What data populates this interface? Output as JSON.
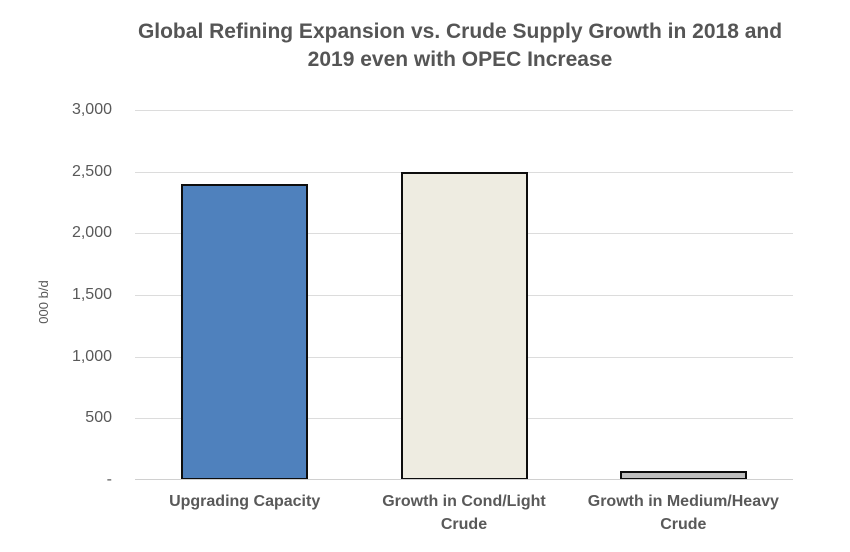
{
  "chart_data": {
    "type": "bar",
    "title": "Global Refining Expansion vs. Crude Supply Growth in 2018 and 2019 even with OPEC Increase",
    "title_lines": [
      "Global Refining Expansion vs. Crude Supply Growth in 2018 and",
      "2019 even with OPEC Increase"
    ],
    "categories": [
      "Upgrading Capacity",
      "Growth in Cond/Light Crude",
      "Growth in Medium/Heavy Crude"
    ],
    "values": [
      2400,
      2500,
      75
    ],
    "bar_colors": [
      "#4F81BD",
      "#EEECE1",
      "#BFBFBF"
    ],
    "bar_border_color": "#0D0D0D",
    "xlabel": "",
    "ylabel": "000 b/d",
    "ylim": [
      0,
      3000
    ],
    "ytick_values": [
      0,
      500,
      1000,
      1500,
      2000,
      2500,
      3000
    ],
    "ytick_labels": [
      "-",
      "500",
      "1,000",
      "1,500",
      "2,000",
      "2,500",
      "3,000"
    ],
    "grid": true,
    "gridline_color": "#DCDCDC",
    "axis_line_color": "#D0D0D0",
    "text_color": "#595959",
    "title_color": "#555555",
    "legend": "none"
  }
}
